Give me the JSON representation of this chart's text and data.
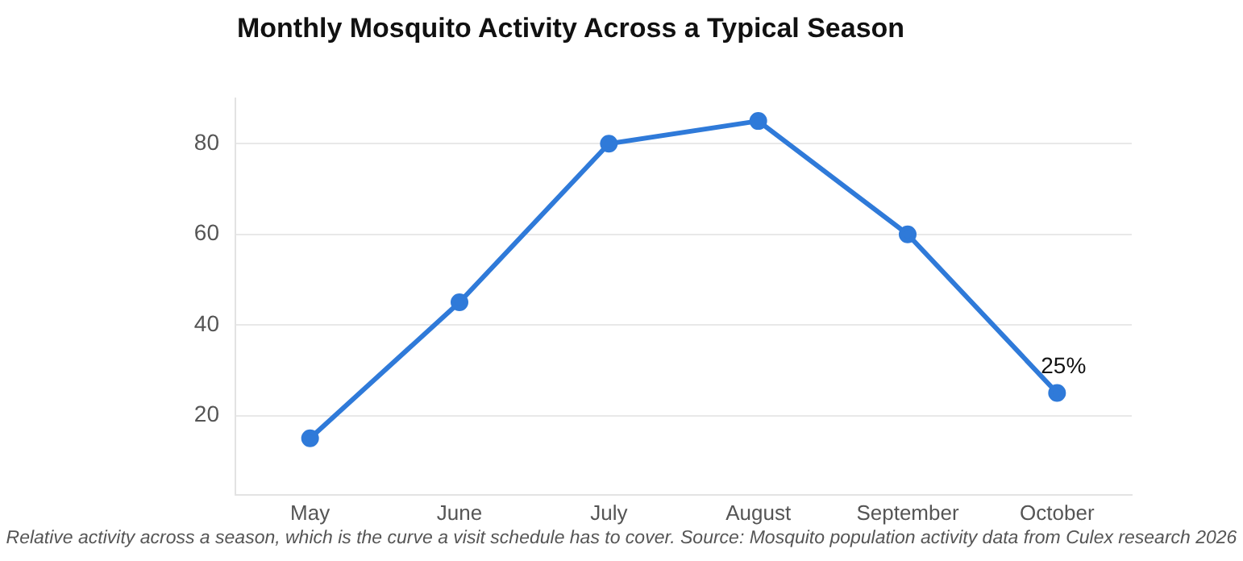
{
  "chart_data": {
    "type": "line",
    "title": "Monthly Mosquito Activity Across a Typical Season",
    "categories": [
      "May",
      "June",
      "July",
      "August",
      "September",
      "October"
    ],
    "series": [
      {
        "color": "#2f7ad9",
        "values": [
          15,
          45,
          80,
          85,
          60,
          25
        ]
      }
    ],
    "ylim": [
      2.5,
      90
    ],
    "yticks": [
      20,
      40,
      60,
      80
    ],
    "grid": "y",
    "legend": false,
    "marker": "circle",
    "line_style": "solid",
    "annotations": [
      {
        "text": "25%",
        "x": "October",
        "y": 25
      },
      "Relative activity across a season, which is the curve a visit schedule has to cover. Source: Mosquito population activity data from Culex research 2026"
    ]
  }
}
